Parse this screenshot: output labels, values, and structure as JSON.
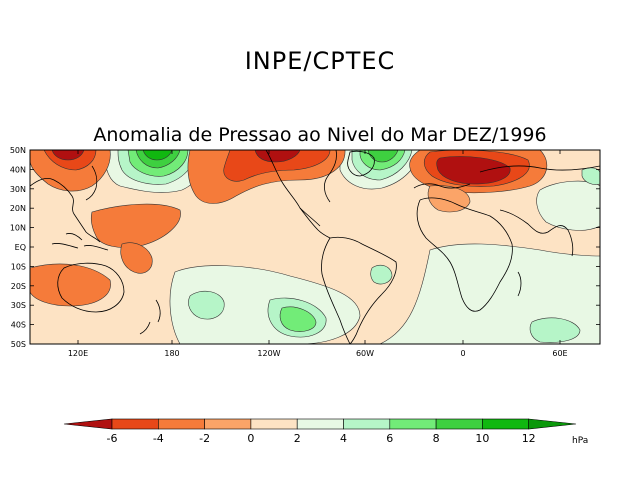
{
  "header": {
    "agency": "INPE/CPTEC",
    "map_title": "Anomalia de Pressao ao Nivel do Mar DEZ/1996"
  },
  "map": {
    "lat_labels": [
      "50N",
      "40N",
      "30N",
      "20N",
      "10N",
      "EQ",
      "10S",
      "20S",
      "30S",
      "40S",
      "50S"
    ],
    "lon_labels": [
      "120E",
      "180",
      "120W",
      "60W",
      "0",
      "60E"
    ]
  },
  "colorbar": {
    "unit": "hPa",
    "ticks": [
      "-6",
      "-4",
      "-2",
      "0",
      "2",
      "4",
      "6",
      "8",
      "10",
      "12"
    ],
    "colors": [
      "#b01010",
      "#e84818",
      "#f57b3a",
      "#fba468",
      "#fde3c4",
      "#e8f8e4",
      "#b6f5c8",
      "#72ec78",
      "#3ed040",
      "#10b810",
      "#0a980a",
      "#006400"
    ]
  }
}
